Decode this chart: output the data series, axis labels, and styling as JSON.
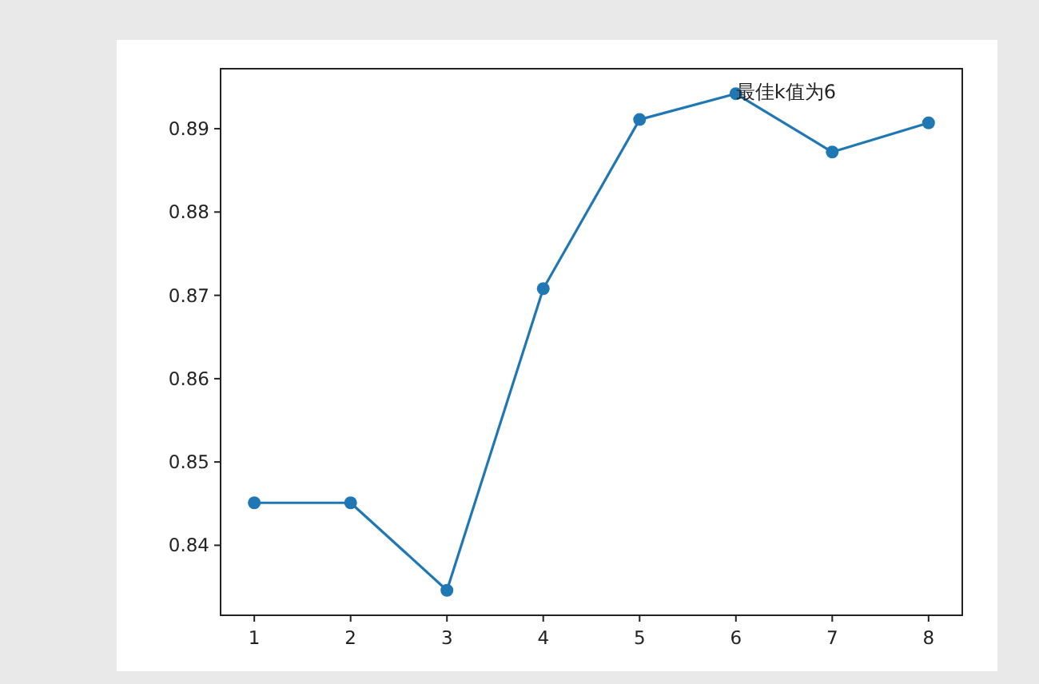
{
  "chart_data": {
    "type": "line",
    "x": [
      1,
      2,
      3,
      4,
      5,
      6,
      7,
      8
    ],
    "values": [
      0.8451,
      0.8451,
      0.8346,
      0.8708,
      0.8911,
      0.8942,
      0.8872,
      0.8907
    ],
    "color": "#1f77b4",
    "marker": "circle",
    "line_style": "solid",
    "xlim": [
      0.65,
      8.35
    ],
    "xticks": [
      1,
      2,
      3,
      4,
      5,
      6,
      7,
      8
    ],
    "ylim": [
      0.8316,
      0.8972
    ],
    "yticks": [
      0.84,
      0.85,
      0.86,
      0.87,
      0.88,
      0.89
    ],
    "annotations": [
      {
        "text": "最佳k值为6",
        "x": 6,
        "y": 0.8942
      }
    ]
  }
}
